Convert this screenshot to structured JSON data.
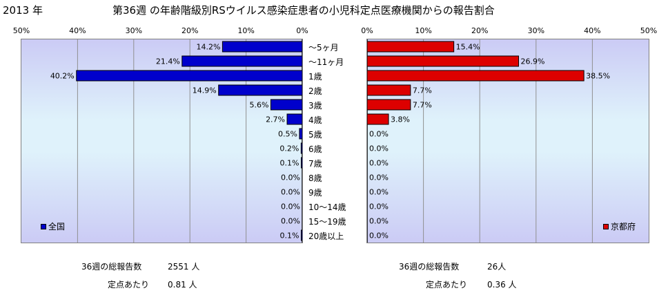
{
  "header": {
    "year": "2013 年",
    "title": "第36週 の年齢階級別RSウイルス感染症患者の小児科定点医療機関からの報告割合"
  },
  "chart_data": [
    {
      "type": "bar",
      "orientation": "horizontal",
      "direction": "right-to-left",
      "series": [
        {
          "name": "全国",
          "values": [
            14.2,
            21.4,
            40.2,
            14.9,
            5.6,
            2.7,
            0.5,
            0.2,
            0.1,
            0.0,
            0.0,
            0.0,
            0.0,
            0.1
          ]
        }
      ],
      "value_labels": [
        "14.2%",
        "21.4%",
        "40.2%",
        "14.9%",
        "5.6%",
        "2.7%",
        "0.5%",
        "0.2%",
        "0.1%",
        "0.0%",
        "0.0%",
        "0.0%",
        "0.0%",
        "0.1%"
      ],
      "xlim": [
        0,
        50
      ],
      "xticks": [
        "50%",
        "40%",
        "30%",
        "20%",
        "10%",
        "0%"
      ],
      "color": "#0000cc",
      "legend": "bottom-left",
      "grid": true
    },
    {
      "type": "bar",
      "orientation": "horizontal",
      "direction": "left-to-right",
      "series": [
        {
          "name": "京都府",
          "values": [
            15.4,
            26.9,
            38.5,
            7.7,
            7.7,
            3.8,
            0.0,
            0.0,
            0.0,
            0.0,
            0.0,
            0.0,
            0.0,
            0.0
          ]
        }
      ],
      "value_labels": [
        "15.4%",
        "26.9%",
        "38.5%",
        "7.7%",
        "7.7%",
        "3.8%",
        "0.0%",
        "0.0%",
        "0.0%",
        "0.0%",
        "0.0%",
        "0.0%",
        "0.0%",
        "0.0%"
      ],
      "xlim": [
        0,
        50
      ],
      "xticks": [
        "0%",
        "10%",
        "20%",
        "30%",
        "40%",
        "50%"
      ],
      "color": "#dd0000",
      "legend": "bottom-right",
      "grid": true
    }
  ],
  "categories": [
    "～5ヶ月",
    "～11ヶ月",
    "1歳",
    "2歳",
    "3歳",
    "4歳",
    "5歳",
    "6歳",
    "7歳",
    "8歳",
    "9歳",
    "10～14歳",
    "15～19歳",
    "20歳以上"
  ],
  "footer": {
    "national": {
      "reports_label": "36週の総報告数",
      "reports_value": "2551 人",
      "per_site_label": "定点あたり",
      "per_site_value": "0.81 人"
    },
    "kyoto": {
      "reports_label": "36週の総報告数",
      "reports_value": "26人",
      "per_site_label": "定点あたり",
      "per_site_value": "0.36 人"
    }
  }
}
